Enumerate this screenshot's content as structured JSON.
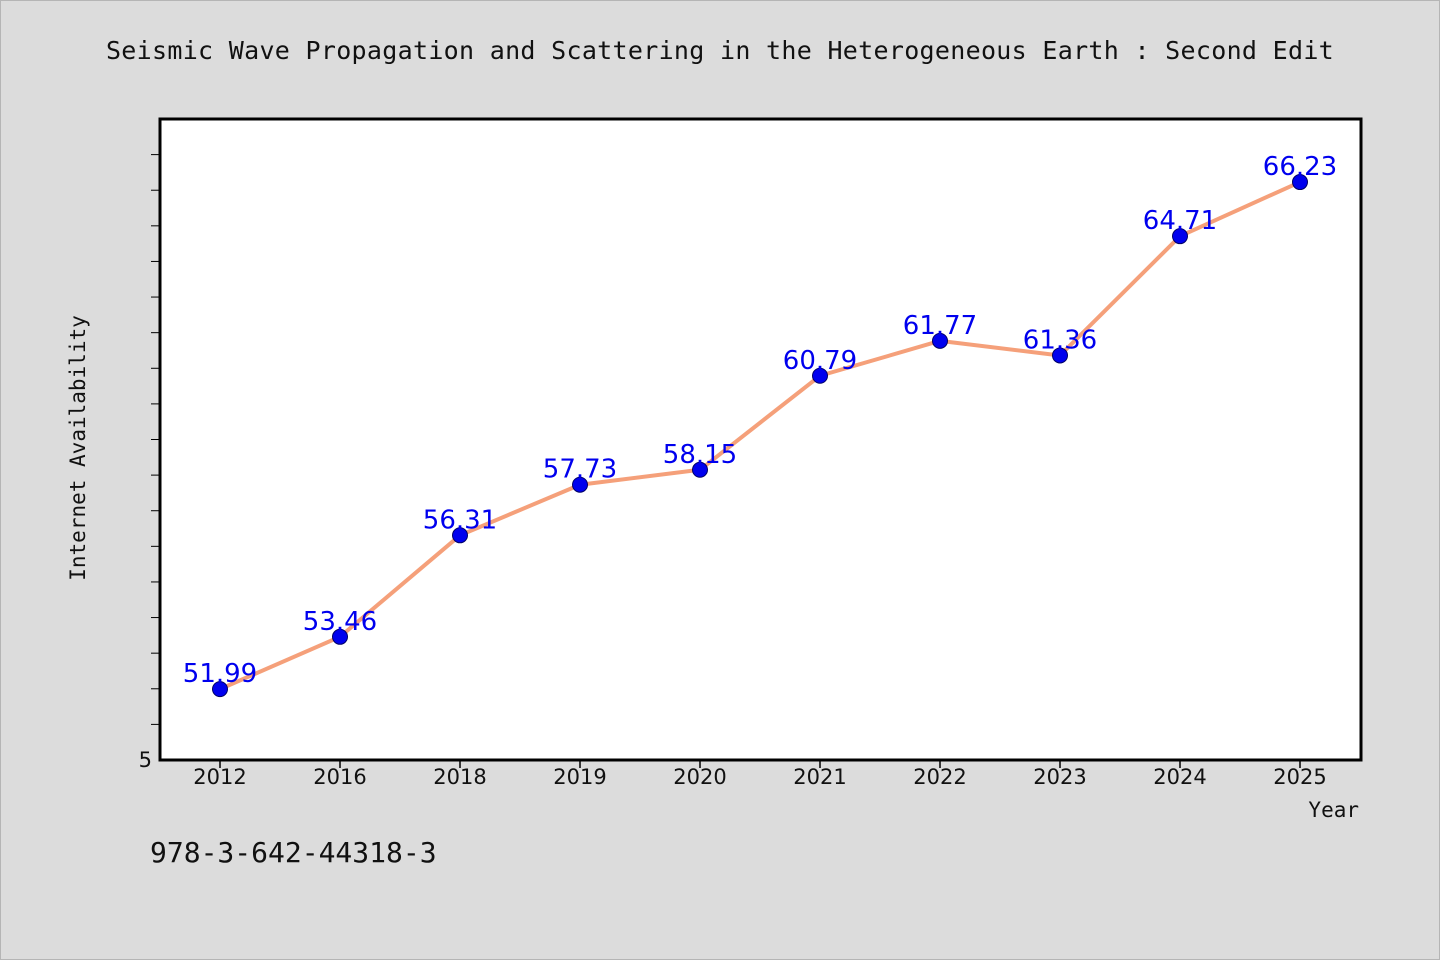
{
  "chart_data": {
    "type": "line",
    "title": "Seismic Wave Propagation and Scattering in the Heterogeneous Earth : Second Edit",
    "xlabel": "Year",
    "ylabel": "Internet Availability",
    "categories": [
      "2012",
      "2016",
      "2018",
      "2019",
      "2020",
      "2021",
      "2022",
      "2023",
      "2024",
      "2025"
    ],
    "series": [
      {
        "values": [
          51.99,
          53.46,
          56.31,
          57.73,
          58.15,
          60.79,
          61.77,
          61.36,
          64.71,
          66.23
        ],
        "labels": [
          "51.99",
          "53.46",
          "56.31",
          "57.73",
          "58.15",
          "60.79",
          "61.77",
          "61.36",
          "64.71",
          "66.23"
        ],
        "line_color": "#f5a07a",
        "marker_color": "#0000ee"
      }
    ],
    "ylim": [
      50,
      68
    ],
    "y_tick_labels": [
      {
        "value": 50,
        "label": "5"
      }
    ],
    "grid": false,
    "legend": "none"
  },
  "footer_code": "978-3-642-44318-3"
}
